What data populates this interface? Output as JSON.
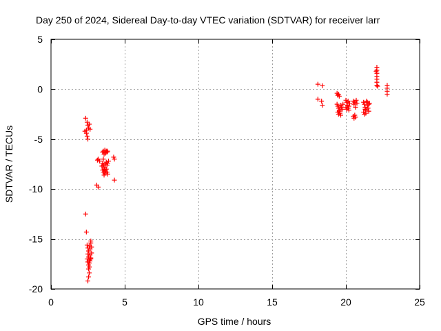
{
  "chart_data": {
    "type": "scatter",
    "title": "Day 250 of 2024, Sidereal Day-to-day VTEC variation (SDTVAR) for receiver larr",
    "xlabel": "GPS time / hours",
    "ylabel": "SDTVAR / TECUs",
    "xlim": [
      0,
      25
    ],
    "ylim": [
      -20,
      5
    ],
    "xticks": [
      0,
      5,
      10,
      15,
      20,
      25
    ],
    "yticks": [
      -20,
      -15,
      -10,
      -5,
      0,
      5
    ],
    "xtick_labels": [
      "0",
      "5",
      "10",
      "15",
      "20",
      "25"
    ],
    "ytick_labels": [
      "-20",
      "-15",
      "-10",
      "-5",
      "0",
      "5"
    ],
    "grid": true,
    "marker": "+",
    "color": "#ff0000",
    "series": [
      {
        "name": "SDTVAR",
        "points": [
          [
            2.35,
            -2.9
          ],
          [
            2.45,
            -3.3
          ],
          [
            2.5,
            -3.6
          ],
          [
            2.55,
            -3.9
          ],
          [
            2.6,
            -3.5
          ],
          [
            2.65,
            -4.0
          ],
          [
            2.3,
            -4.2
          ],
          [
            2.4,
            -4.4
          ],
          [
            2.45,
            -4.7
          ],
          [
            2.5,
            -5.0
          ],
          [
            2.4,
            -4.1
          ],
          [
            3.15,
            -7.1
          ],
          [
            3.2,
            -7.0
          ],
          [
            3.3,
            -7.2
          ],
          [
            3.5,
            -6.3
          ],
          [
            3.55,
            -6.2
          ],
          [
            3.6,
            -6.5
          ],
          [
            3.65,
            -6.1
          ],
          [
            3.7,
            -6.4
          ],
          [
            3.75,
            -6.2
          ],
          [
            3.8,
            -6.3
          ],
          [
            3.85,
            -6.2
          ],
          [
            3.5,
            -7.4
          ],
          [
            3.55,
            -7.6
          ],
          [
            3.6,
            -7.8
          ],
          [
            3.65,
            -8.0
          ],
          [
            3.7,
            -7.5
          ],
          [
            3.75,
            -7.3
          ],
          [
            3.8,
            -7.6
          ],
          [
            3.85,
            -7.4
          ],
          [
            3.5,
            -8.1
          ],
          [
            3.55,
            -8.3
          ],
          [
            3.6,
            -8.0
          ],
          [
            3.65,
            -8.4
          ],
          [
            3.7,
            -8.2
          ],
          [
            3.75,
            -8.0
          ],
          [
            3.8,
            -8.3
          ],
          [
            3.85,
            -8.5
          ],
          [
            3.6,
            -8.6
          ],
          [
            3.9,
            -7.2
          ],
          [
            3.55,
            -7.0
          ],
          [
            3.45,
            -7.7
          ],
          [
            4.25,
            -6.8
          ],
          [
            4.3,
            -7.0
          ],
          [
            4.3,
            -9.1
          ],
          [
            3.1,
            -9.6
          ],
          [
            3.2,
            -9.8
          ],
          [
            2.35,
            -12.5
          ],
          [
            2.4,
            -14.3
          ],
          [
            2.45,
            -15.6
          ],
          [
            2.5,
            -15.9
          ],
          [
            2.55,
            -16.2
          ],
          [
            2.6,
            -15.7
          ],
          [
            2.65,
            -16.0
          ],
          [
            2.7,
            -15.4
          ],
          [
            2.75,
            -15.8
          ],
          [
            2.5,
            -16.5
          ],
          [
            2.55,
            -16.8
          ],
          [
            2.6,
            -17.1
          ],
          [
            2.65,
            -16.6
          ],
          [
            2.7,
            -16.9
          ],
          [
            2.75,
            -16.4
          ],
          [
            2.45,
            -17.0
          ],
          [
            2.5,
            -17.3
          ],
          [
            2.55,
            -17.6
          ],
          [
            2.6,
            -17.4
          ],
          [
            2.65,
            -17.2
          ],
          [
            2.7,
            -17.0
          ],
          [
            2.55,
            -18.0
          ],
          [
            2.6,
            -18.4
          ],
          [
            2.55,
            -18.8
          ],
          [
            2.5,
            -19.2
          ],
          [
            2.6,
            -17.8
          ],
          [
            2.7,
            -15.2
          ],
          [
            18.1,
            0.5
          ],
          [
            18.4,
            0.35
          ],
          [
            18.1,
            -1.0
          ],
          [
            18.35,
            -1.2
          ],
          [
            18.4,
            -1.6
          ],
          [
            19.4,
            -0.4
          ],
          [
            19.45,
            -0.6
          ],
          [
            19.5,
            -0.5
          ],
          [
            19.55,
            -0.7
          ],
          [
            19.4,
            -1.5
          ],
          [
            19.45,
            -1.7
          ],
          [
            19.5,
            -1.9
          ],
          [
            19.55,
            -2.2
          ],
          [
            19.6,
            -2.4
          ],
          [
            19.65,
            -1.6
          ],
          [
            19.7,
            -1.8
          ],
          [
            19.75,
            -2.0
          ],
          [
            19.8,
            -1.5
          ],
          [
            19.45,
            -2.3
          ],
          [
            19.5,
            -2.5
          ],
          [
            19.55,
            -2.1
          ],
          [
            19.65,
            -2.6
          ],
          [
            20.0,
            -1.1
          ],
          [
            20.05,
            -1.3
          ],
          [
            20.1,
            -1.6
          ],
          [
            20.15,
            -1.9
          ],
          [
            20.2,
            -2.1
          ],
          [
            20.25,
            -1.4
          ],
          [
            20.0,
            -1.8
          ],
          [
            20.05,
            -2.0
          ],
          [
            20.15,
            -1.2
          ],
          [
            20.2,
            -1.7
          ],
          [
            20.5,
            -1.2
          ],
          [
            20.55,
            -1.5
          ],
          [
            20.6,
            -1.3
          ],
          [
            20.65,
            -1.8
          ],
          [
            20.7,
            -1.1
          ],
          [
            20.75,
            -1.4
          ],
          [
            20.5,
            -2.7
          ],
          [
            20.55,
            -2.9
          ],
          [
            20.6,
            -2.6
          ],
          [
            20.65,
            -2.8
          ],
          [
            21.2,
            -1.3
          ],
          [
            21.25,
            -1.5
          ],
          [
            21.3,
            -1.8
          ],
          [
            21.35,
            -2.1
          ],
          [
            21.4,
            -1.2
          ],
          [
            21.45,
            -1.6
          ],
          [
            21.5,
            -1.9
          ],
          [
            21.55,
            -2.2
          ],
          [
            21.6,
            -1.4
          ],
          [
            21.2,
            -2.3
          ],
          [
            21.25,
            -2.5
          ],
          [
            21.3,
            -2.0
          ],
          [
            21.35,
            -2.4
          ],
          [
            21.45,
            -1.3
          ],
          [
            21.55,
            -1.5
          ],
          [
            22.1,
            2.2
          ],
          [
            22.1,
            1.9
          ],
          [
            22.1,
            1.6
          ],
          [
            22.1,
            1.3
          ],
          [
            22.1,
            1.0
          ],
          [
            22.1,
            0.7
          ],
          [
            22.1,
            0.4
          ],
          [
            22.15,
            0.3
          ],
          [
            22.05,
            1.8
          ],
          [
            22.8,
            0.4
          ],
          [
            22.8,
            0.1
          ],
          [
            22.8,
            -0.2
          ],
          [
            22.8,
            -0.5
          ]
        ]
      }
    ]
  }
}
